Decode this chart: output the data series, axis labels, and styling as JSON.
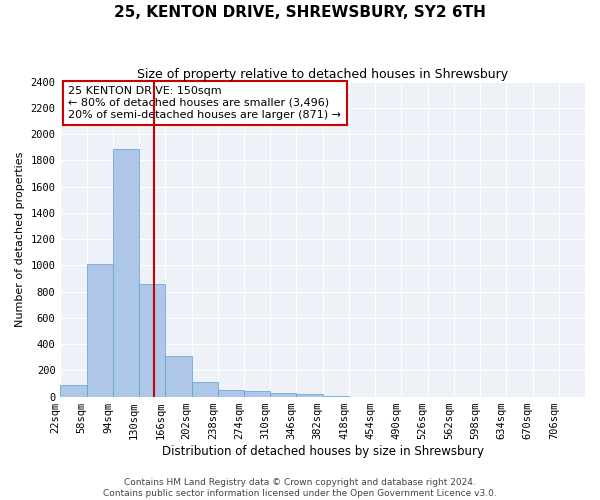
{
  "title": "25, KENTON DRIVE, SHREWSBURY, SY2 6TH",
  "subtitle": "Size of property relative to detached houses in Shrewsbury",
  "xlabel": "Distribution of detached houses by size in Shrewsbury",
  "ylabel": "Number of detached properties",
  "footer_line1": "Contains HM Land Registry data © Crown copyright and database right 2024.",
  "footer_line2": "Contains public sector information licensed under the Open Government Licence v3.0.",
  "property_label": "25 KENTON DRIVE: 150sqm",
  "annotation_line1": "← 80% of detached houses are smaller (3,496)",
  "annotation_line2": "20% of semi-detached houses are larger (871) →",
  "vline_x": 150,
  "bar_edges": [
    22,
    58,
    94,
    130,
    166,
    202,
    238,
    274,
    310,
    346,
    382,
    418,
    454,
    490,
    526,
    562,
    598,
    634,
    670,
    706,
    742
  ],
  "bar_heights": [
    90,
    1010,
    1890,
    855,
    310,
    110,
    50,
    40,
    30,
    20,
    5,
    0,
    0,
    0,
    0,
    0,
    0,
    0,
    0,
    0
  ],
  "bar_color": "#aec6e8",
  "bar_edge_color": "#5a9fd4",
  "vline_color": "#cc0000",
  "annotation_box_color": "#cc0000",
  "background_color": "#eef2f8",
  "grid_color": "#ffffff",
  "ylim": [
    0,
    2400
  ],
  "yticks": [
    0,
    200,
    400,
    600,
    800,
    1000,
    1200,
    1400,
    1600,
    1800,
    2000,
    2200,
    2400
  ],
  "title_fontsize": 11,
  "subtitle_fontsize": 9,
  "xlabel_fontsize": 8.5,
  "ylabel_fontsize": 8,
  "tick_fontsize": 7.5,
  "annotation_fontsize": 8,
  "footer_fontsize": 6.5
}
